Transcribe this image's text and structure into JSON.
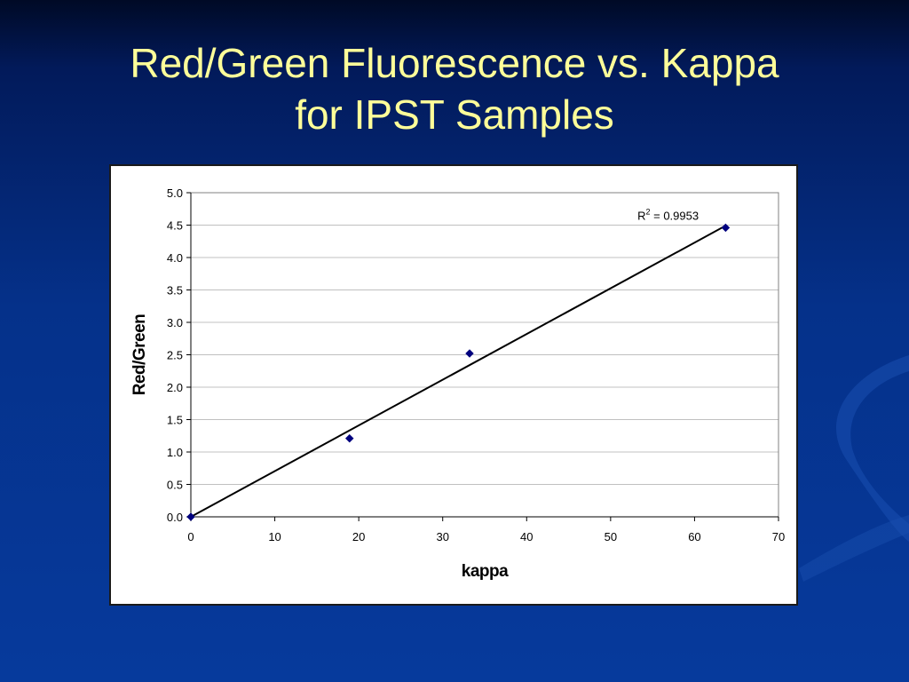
{
  "slide": {
    "title_line1": "Red/Green Fluorescence vs. Kappa",
    "title_line2": "for IPST Samples"
  },
  "colors": {
    "title": "#ffff99",
    "background": "#05318a",
    "marker": "#00007f",
    "trendline": "#000000",
    "gridline": "#c0c0c0"
  },
  "chart_data": {
    "type": "scatter",
    "xlabel": "kappa",
    "ylabel": "Red/Green",
    "xlim": [
      0,
      70
    ],
    "ylim": [
      0,
      5
    ],
    "x_ticks": [
      "0",
      "10",
      "20",
      "30",
      "40",
      "50",
      "60",
      "70"
    ],
    "y_ticks": [
      "0.0",
      "0.5",
      "1.0",
      "1.5",
      "2.0",
      "2.5",
      "3.0",
      "3.5",
      "4.0",
      "4.5",
      "5.0"
    ],
    "grid": "horizontal major gridlines",
    "series": [
      {
        "marker": "diamond",
        "points": [
          {
            "x": 0,
            "y": 0
          },
          {
            "x": 18.9,
            "y": 1.21
          },
          {
            "x": 33.2,
            "y": 2.52
          },
          {
            "x": 63.7,
            "y": 4.46
          }
        ]
      }
    ],
    "trendline": {
      "type": "linear",
      "slope": 0.0705,
      "intercept": 0,
      "x_range": [
        0,
        63.7
      ],
      "r2_prefix": "R",
      "r2_power": "2",
      "r2_value": " = 0.9953"
    }
  }
}
